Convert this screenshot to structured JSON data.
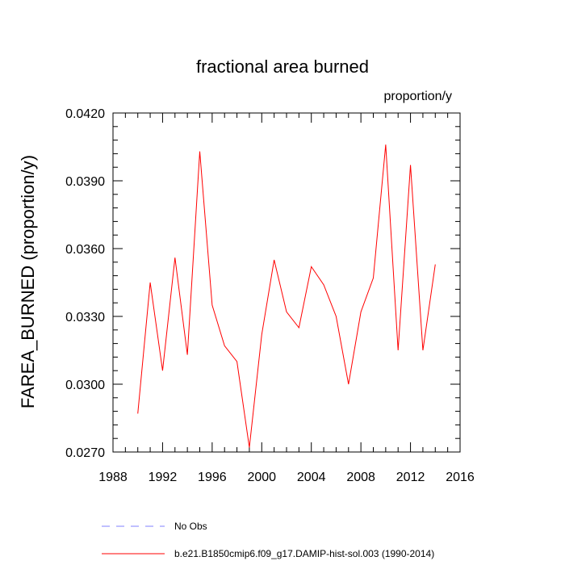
{
  "chart_data": {
    "type": "line",
    "title": "fractional area burned",
    "units": "proportion/y",
    "ylabel": "FAREA_BURNED  (proportion/y)",
    "xlabel": "",
    "xlim": [
      1988,
      2016
    ],
    "ylim": [
      0.027,
      0.042
    ],
    "x_ticks": [
      "1988",
      "1992",
      "1996",
      "2000",
      "2004",
      "2008",
      "2012",
      "2016"
    ],
    "y_ticks": [
      "0.0270",
      "0.0300",
      "0.0330",
      "0.0360",
      "0.0390",
      "0.0420"
    ],
    "grid": false,
    "legend_position": "bottom",
    "series": [
      {
        "name": "b.e21.B1850cmip6.f09_g17.DAMIP-hist-sol.003 (1990-2014)",
        "color": "#ff0000",
        "style": "solid",
        "x": [
          1990,
          1991,
          1992,
          1993,
          1994,
          1995,
          1996,
          1997,
          1998,
          1999,
          2000,
          2001,
          2002,
          2003,
          2004,
          2005,
          2006,
          2007,
          2008,
          2009,
          2010,
          2011,
          2012,
          2013,
          2014
        ],
        "values": [
          0.0287,
          0.0345,
          0.0306,
          0.0356,
          0.0313,
          0.0403,
          0.0335,
          0.0317,
          0.031,
          0.0272,
          0.0322,
          0.0355,
          0.0332,
          0.0325,
          0.0352,
          0.0344,
          0.033,
          0.03,
          0.0332,
          0.0347,
          0.0406,
          0.0315,
          0.0397,
          0.0315,
          0.0353
        ]
      },
      {
        "name": "No Obs",
        "color": "#8080ff",
        "style": "dashed",
        "x": [],
        "values": []
      }
    ]
  }
}
